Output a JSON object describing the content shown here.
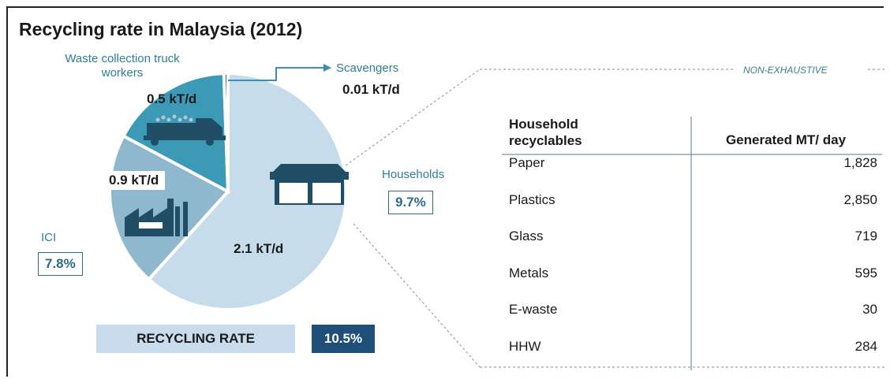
{
  "chart_data": [
    {
      "type": "pie",
      "title": "Recycling rate in Malaysia (2012)",
      "slices": [
        {
          "label": "Households",
          "value_label": "2.1 kT/d",
          "value": 2.1,
          "percent": "9.7%",
          "color": "#c6dcea"
        },
        {
          "label": "ICI",
          "value_label": "0.9 kT/d",
          "value": 0.9,
          "percent": "7.8%",
          "color": "#8fb8cf"
        },
        {
          "label": "Waste collection truck workers",
          "value_label": "0.5 kT/d",
          "value": 0.5,
          "color": "#3d9ab7"
        },
        {
          "label": "Scavengers",
          "value_label": "0.01 kT/d",
          "value": 0.01,
          "color": "#2e6b8a"
        }
      ],
      "recycling_rate_label": "RECYCLING RATE",
      "recycling_rate_value": "10.5%"
    },
    {
      "type": "table",
      "note": "NON-EXHAUSTIVE",
      "columns": [
        "Household recyclables",
        "Generated MT/ day"
      ],
      "rows": [
        {
          "name": "Paper",
          "value": "1,828"
        },
        {
          "name": "Plastics",
          "value": "2,850"
        },
        {
          "name": "Glass",
          "value": "719"
        },
        {
          "name": "Metals",
          "value": "595"
        },
        {
          "name": "E-waste",
          "value": "30"
        },
        {
          "name": "HHW",
          "value": "284"
        }
      ]
    }
  ]
}
